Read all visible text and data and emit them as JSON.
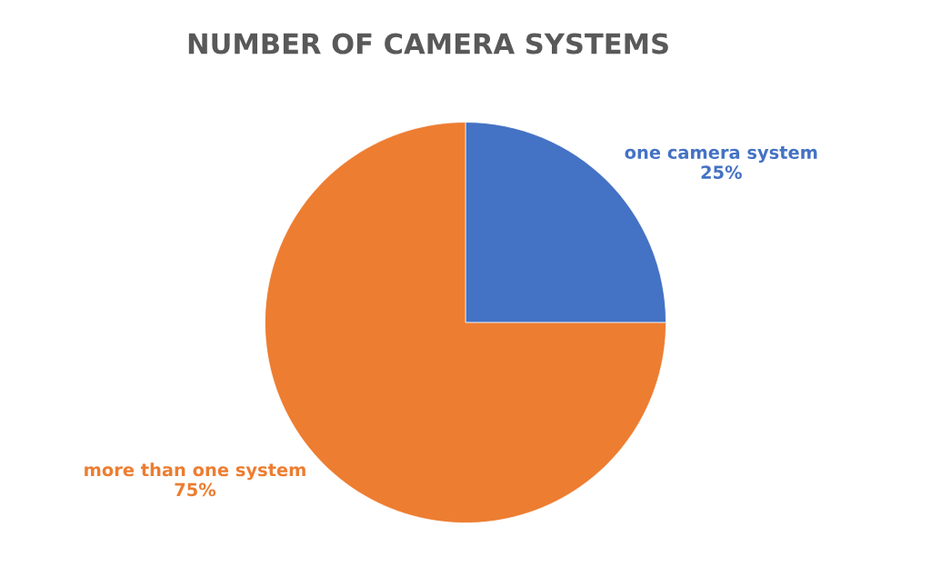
{
  "chart_data": {
    "type": "pie",
    "title": "NUMBER OF CAMERA SYSTEMS",
    "categories": [
      "one camera system",
      "more than one system"
    ],
    "values": [
      25,
      75
    ],
    "colors": [
      "#4472c4",
      "#ed7d31"
    ],
    "value_labels": [
      "25%",
      "75%"
    ],
    "legend": false
  }
}
